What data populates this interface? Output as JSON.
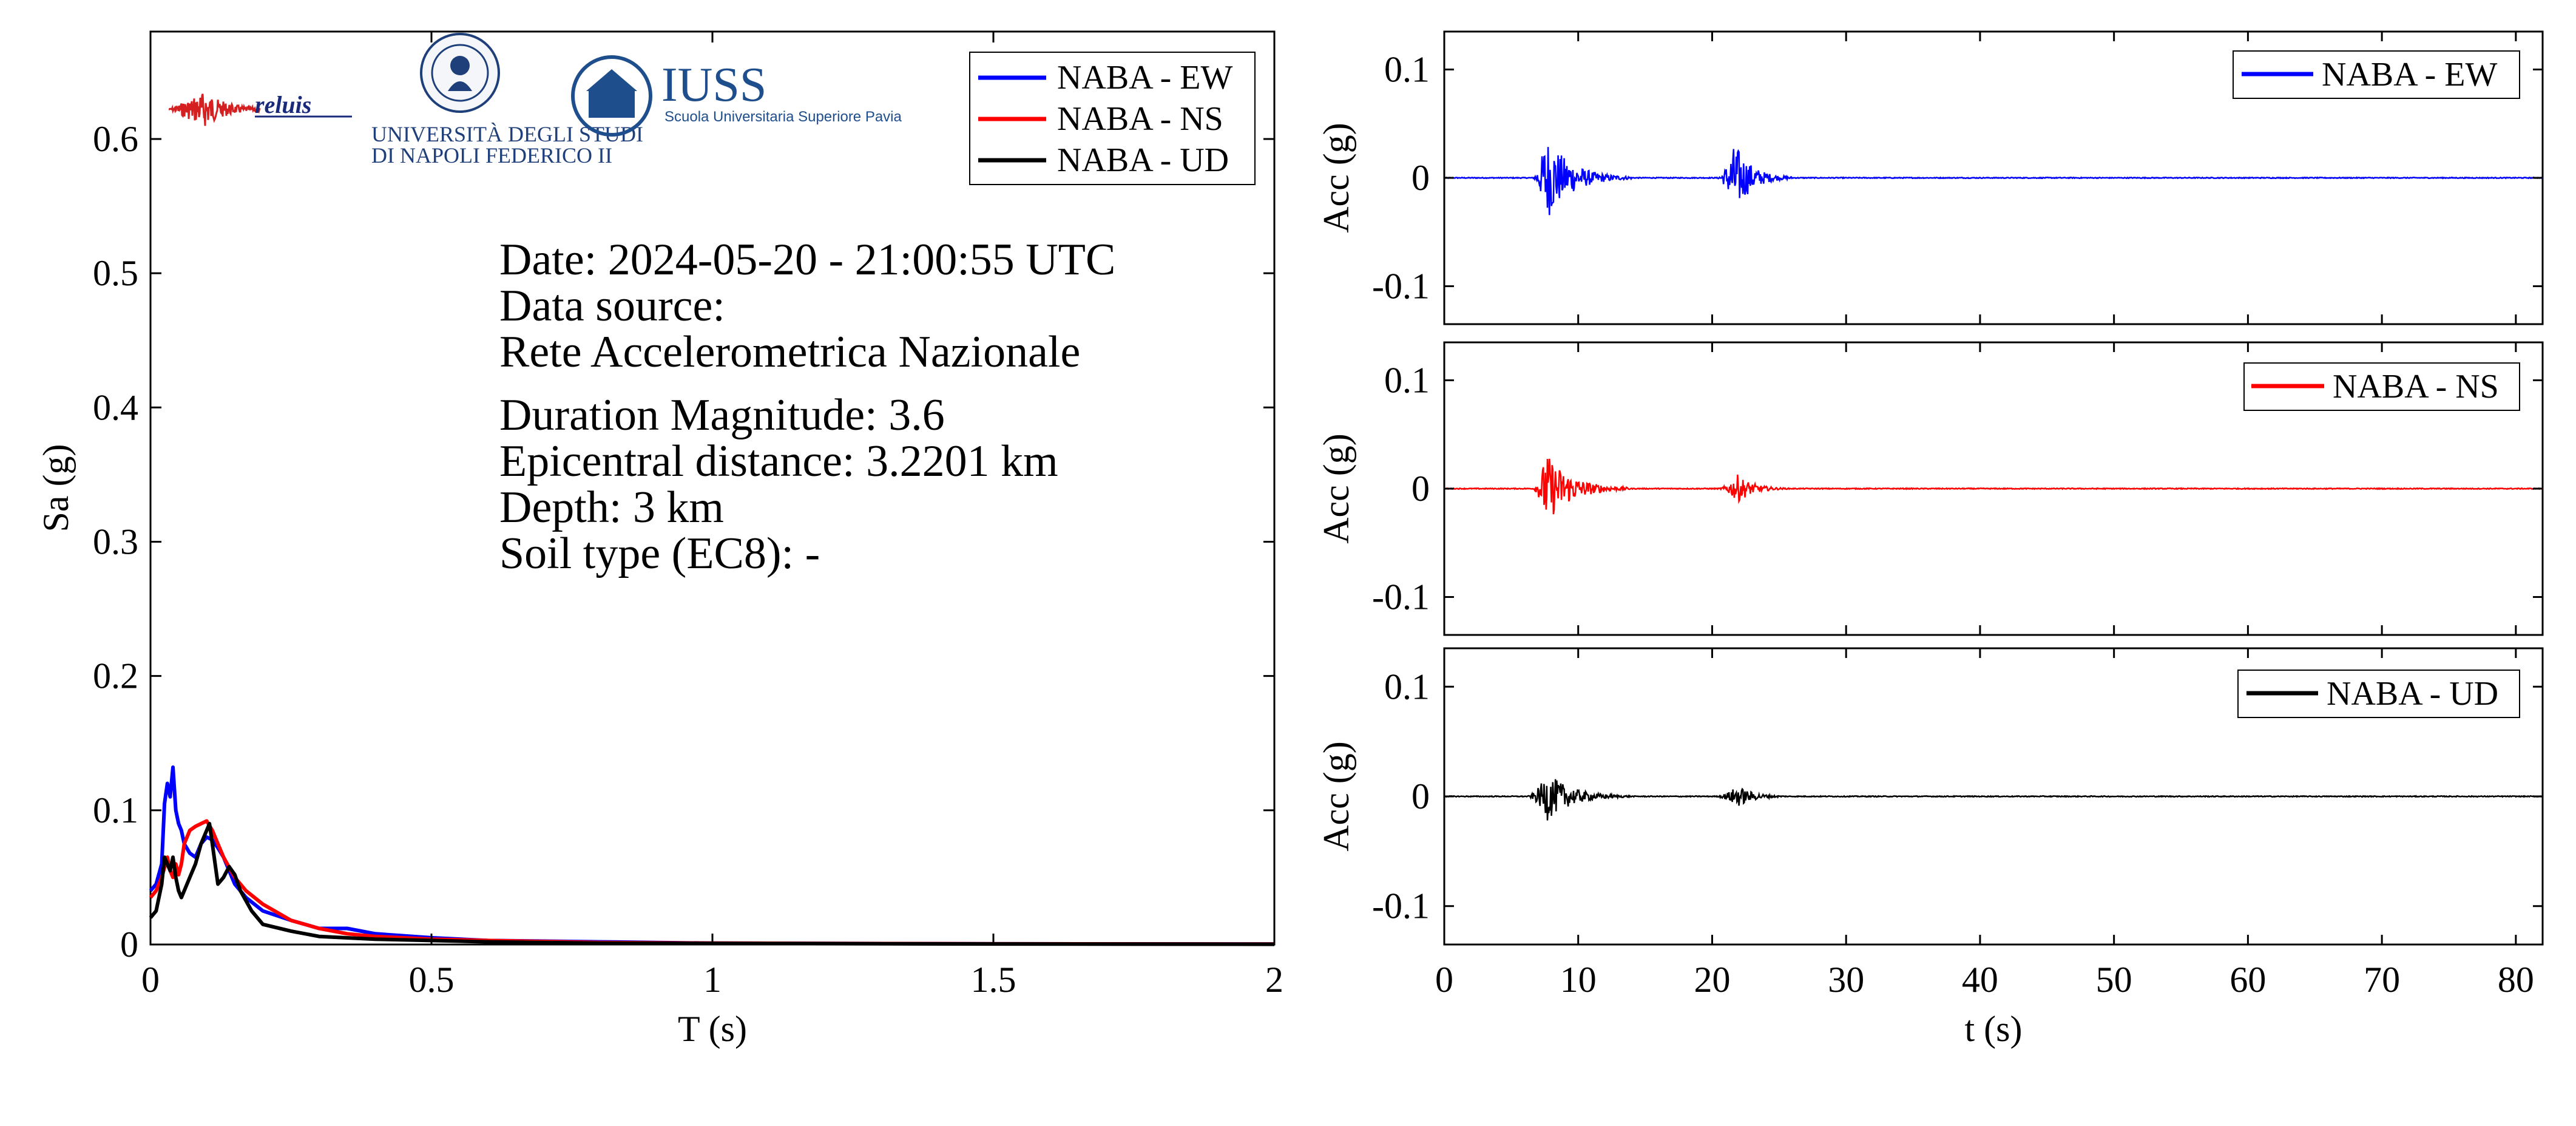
{
  "colors": {
    "ew": "#0000ff",
    "ns": "#ff0000",
    "ud": "#000000",
    "iuss": "#1f4e8c"
  },
  "info": {
    "date": "Date: 2024-05-20 - 21:00:55 UTC",
    "source_label": "Data source:",
    "source_value": "Rete Accelerometrica Nazionale",
    "magnitude": "Duration Magnitude: 3.6",
    "distance": "Epicentral distance: 3.2201 km",
    "depth": "Depth: 3 km",
    "soil": "Soil type (EC8): -"
  },
  "logos": {
    "reluis": "reluis",
    "unina_line1": "UNIVERSITÀ DEGLI STUDI",
    "unina_line2": "DI NAPOLI FEDERICO II",
    "iuss_title": "IUSS",
    "iuss_sub": "Scuola Universitaria Superiore Pavia"
  },
  "chart_data": [
    {
      "type": "line",
      "xlabel": "T (s)",
      "ylabel": "Sa (g)",
      "xlim": [
        0,
        2
      ],
      "ylim": [
        0,
        0.68
      ],
      "xticks": [
        0,
        0.5,
        1,
        1.5,
        2
      ],
      "xtick_labels": [
        "0",
        "0.5",
        "1",
        "1.5",
        "2"
      ],
      "yticks": [
        0,
        0.1,
        0.2,
        0.3,
        0.4,
        0.5,
        0.6
      ],
      "ytick_labels": [
        "0",
        "0.1",
        "0.2",
        "0.3",
        "0.4",
        "0.5",
        "0.6"
      ],
      "legend": "top-right",
      "series": [
        {
          "name": "NABA - EW",
          "color_key": "ew",
          "x": [
            0,
            0.01,
            0.02,
            0.025,
            0.03,
            0.035,
            0.04,
            0.045,
            0.05,
            0.055,
            0.06,
            0.07,
            0.08,
            0.09,
            0.1,
            0.11,
            0.12,
            0.13,
            0.14,
            0.15,
            0.17,
            0.2,
            0.25,
            0.3,
            0.35,
            0.4,
            0.5,
            0.6,
            0.8,
            1.0,
            1.5,
            2.0
          ],
          "y": [
            0.04,
            0.045,
            0.06,
            0.105,
            0.12,
            0.11,
            0.132,
            0.1,
            0.09,
            0.085,
            0.075,
            0.068,
            0.065,
            0.075,
            0.08,
            0.078,
            0.072,
            0.065,
            0.055,
            0.045,
            0.035,
            0.025,
            0.018,
            0.012,
            0.012,
            0.008,
            0.005,
            0.003,
            0.002,
            0.001,
            0.0005,
            0.0003
          ]
        },
        {
          "name": "NABA - NS",
          "color_key": "ns",
          "x": [
            0,
            0.01,
            0.02,
            0.03,
            0.035,
            0.04,
            0.045,
            0.05,
            0.055,
            0.06,
            0.07,
            0.08,
            0.09,
            0.1,
            0.11,
            0.12,
            0.13,
            0.15,
            0.17,
            0.2,
            0.25,
            0.3,
            0.35,
            0.4,
            0.5,
            0.6,
            0.8,
            1.0,
            1.5,
            2.0
          ],
          "y": [
            0.035,
            0.04,
            0.05,
            0.065,
            0.055,
            0.05,
            0.06,
            0.052,
            0.06,
            0.075,
            0.085,
            0.088,
            0.09,
            0.092,
            0.085,
            0.075,
            0.065,
            0.05,
            0.04,
            0.03,
            0.018,
            0.012,
            0.008,
            0.006,
            0.004,
            0.003,
            0.0015,
            0.001,
            0.0005,
            0.0003
          ]
        },
        {
          "name": "NABA - UD",
          "color_key": "ud",
          "x": [
            0,
            0.01,
            0.02,
            0.025,
            0.03,
            0.035,
            0.04,
            0.045,
            0.05,
            0.055,
            0.06,
            0.07,
            0.08,
            0.09,
            0.1,
            0.105,
            0.11,
            0.12,
            0.13,
            0.14,
            0.15,
            0.16,
            0.18,
            0.2,
            0.25,
            0.3,
            0.4,
            0.5,
            0.6,
            0.8,
            1.0,
            1.5,
            2.0
          ],
          "y": [
            0.02,
            0.025,
            0.045,
            0.065,
            0.06,
            0.055,
            0.065,
            0.05,
            0.04,
            0.035,
            0.04,
            0.05,
            0.06,
            0.075,
            0.085,
            0.09,
            0.075,
            0.045,
            0.05,
            0.058,
            0.052,
            0.04,
            0.025,
            0.015,
            0.01,
            0.006,
            0.004,
            0.003,
            0.002,
            0.001,
            0.0008,
            0.0004,
            0.0002
          ]
        }
      ]
    },
    {
      "type": "line",
      "xlabel": "",
      "ylabel": "Acc (g)",
      "xlim": [
        0,
        82
      ],
      "ylim": [
        -0.135,
        0.135
      ],
      "xticks": [
        0,
        10,
        20,
        30,
        40,
        50,
        60,
        70,
        80
      ],
      "yticks": [
        -0.1,
        0,
        0.1
      ],
      "ytick_labels": [
        "-0.1",
        "0",
        "0.1"
      ],
      "legend": "top-right",
      "series": [
        {
          "name": "NABA - EW",
          "color_key": "ew",
          "bursts": [
            {
              "t0": 6.5,
              "tpeak": 7.6,
              "t1": 14,
              "peak": 0.04
            },
            {
              "t0": 20.2,
              "tpeak": 21.7,
              "t1": 26,
              "peak": 0.033
            }
          ]
        }
      ]
    },
    {
      "type": "line",
      "xlabel": "",
      "ylabel": "Acc (g)",
      "xlim": [
        0,
        82
      ],
      "ylim": [
        -0.135,
        0.135
      ],
      "xticks": [
        0,
        10,
        20,
        30,
        40,
        50,
        60,
        70,
        80
      ],
      "yticks": [
        -0.1,
        0,
        0.1
      ],
      "ytick_labels": [
        "-0.1",
        "0",
        "0.1"
      ],
      "legend": "top-right",
      "series": [
        {
          "name": "NABA - NS",
          "color_key": "ns",
          "bursts": [
            {
              "t0": 6.5,
              "tpeak": 7.6,
              "t1": 14,
              "peak": 0.033
            },
            {
              "t0": 20.2,
              "tpeak": 21.9,
              "t1": 26,
              "peak": 0.013
            }
          ]
        }
      ]
    },
    {
      "type": "line",
      "xlabel": "t (s)",
      "ylabel": "Acc (g)",
      "xlim": [
        0,
        82
      ],
      "ylim": [
        -0.135,
        0.135
      ],
      "xticks": [
        0,
        10,
        20,
        30,
        40,
        50,
        60,
        70,
        80
      ],
      "xtick_labels": [
        "0",
        "10",
        "20",
        "30",
        "40",
        "50",
        "60",
        "70",
        "80"
      ],
      "yticks": [
        -0.1,
        0,
        0.1
      ],
      "ytick_labels": [
        "-0.1",
        "0",
        "0.1"
      ],
      "legend": "top-right",
      "series": [
        {
          "name": "NABA - UD",
          "color_key": "ud",
          "bursts": [
            {
              "t0": 6.0,
              "tpeak": 7.7,
              "t1": 14,
              "peak": 0.022
            },
            {
              "t0": 20.0,
              "tpeak": 21.9,
              "t1": 26,
              "peak": 0.01
            }
          ]
        }
      ]
    }
  ]
}
